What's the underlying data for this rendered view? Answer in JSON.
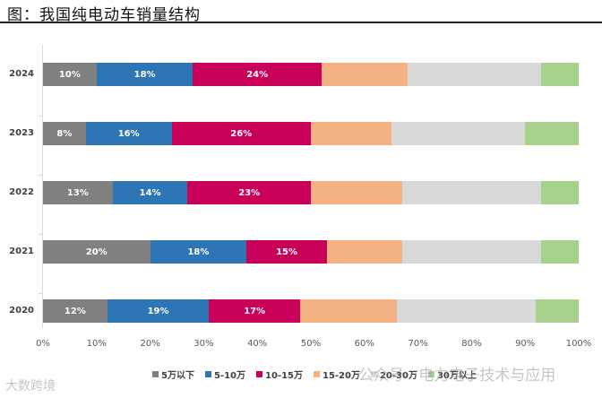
{
  "chart_data": {
    "type": "bar",
    "orientation": "horizontal",
    "stacked": "percent",
    "title": "图：我国纯电动车销量结构",
    "xlabel": "",
    "ylabel": "",
    "xlim": [
      0,
      100
    ],
    "x_ticks": [
      "0%",
      "10%",
      "20%",
      "30%",
      "40%",
      "50%",
      "60%",
      "70%",
      "80%",
      "90%",
      "100%"
    ],
    "categories": [
      "2024",
      "2023",
      "2022",
      "2021",
      "2020"
    ],
    "series": [
      {
        "name": "5万以下",
        "color": "#808080",
        "values": [
          10,
          8,
          13,
          20,
          12
        ],
        "labels": [
          "10%",
          "8%",
          "13%",
          "20%",
          "12%"
        ]
      },
      {
        "name": "5-10万",
        "color": "#2e75b6",
        "values": [
          18,
          16,
          14,
          18,
          19
        ],
        "labels": [
          "18%",
          "16%",
          "14%",
          "18%",
          "19%"
        ]
      },
      {
        "name": "10-15万",
        "color": "#c8005a",
        "values": [
          24,
          26,
          23,
          15,
          17
        ],
        "labels": [
          "24%",
          "26%",
          "23%",
          "15%",
          "17%"
        ]
      },
      {
        "name": "15-20万",
        "color": "#f4b183",
        "values": [
          16,
          15,
          17,
          14,
          18
        ],
        "labels": [
          "",
          "",
          "",
          "",
          ""
        ]
      },
      {
        "name": "20-30万",
        "color": "#d9d9d9",
        "values": [
          25,
          25,
          26,
          26,
          26
        ],
        "labels": [
          "",
          "",
          "",
          "",
          ""
        ]
      },
      {
        "name": "30万以上",
        "color": "#a9d18e",
        "values": [
          7,
          10,
          7,
          7,
          8
        ],
        "labels": [
          "",
          "",
          "",
          "",
          ""
        ]
      }
    ],
    "legend_position": "bottom",
    "grid": false
  },
  "header": {
    "title": "图：我国纯电动车销量结构"
  },
  "watermarks": {
    "left": "大数跨境",
    "right": "公众号 · 电力电子技术与应用"
  }
}
